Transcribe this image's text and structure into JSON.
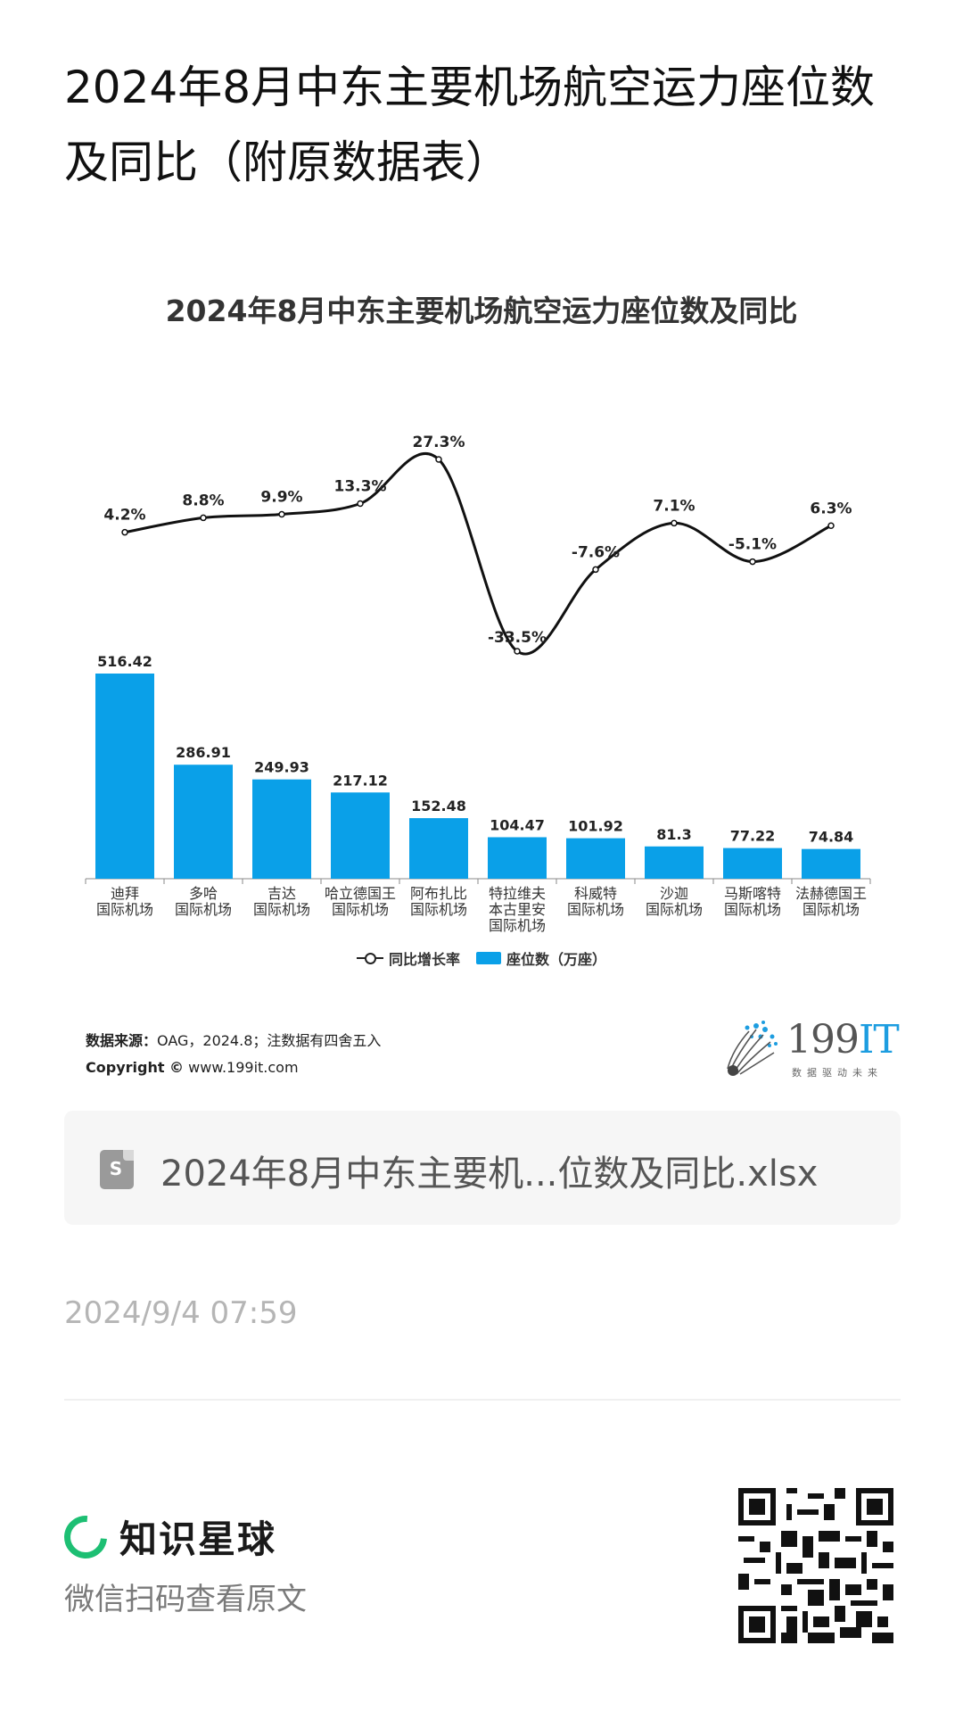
{
  "page": {
    "title": "2024年8月中东主要机场航空运力座位数及同比（附原数据表）"
  },
  "chart_data": {
    "type": "bar",
    "title": "2024年8月中东主要机场航空运力座位数及同比",
    "categories": [
      [
        "迪拜",
        "国际机场"
      ],
      [
        "多哈",
        "国际机场"
      ],
      [
        "吉达",
        "国际机场"
      ],
      [
        "哈立德国王",
        "国际机场"
      ],
      [
        "阿布扎比",
        "国际机场"
      ],
      [
        "特拉维夫",
        "本古里安",
        "国际机场"
      ],
      [
        "科威特",
        "国际机场"
      ],
      [
        "沙迦",
        "国际机场"
      ],
      [
        "马斯喀特",
        "国际机场"
      ],
      [
        "法赫德国王",
        "国际机场"
      ]
    ],
    "series": [
      {
        "name": "座位数（万座）",
        "type": "bar",
        "color": "#0aa0e8",
        "values": [
          516.42,
          286.91,
          249.93,
          217.12,
          152.48,
          104.47,
          101.92,
          81.3,
          77.22,
          74.84
        ],
        "labels": [
          "516.42",
          "286.91",
          "249.93",
          "217.12",
          "152.48",
          "104.47",
          "101.92",
          "81.3",
          "77.22",
          "74.84"
        ]
      },
      {
        "name": "同比增长率",
        "type": "line",
        "color": "#111111",
        "values": [
          4.2,
          8.8,
          9.9,
          13.3,
          27.3,
          -33.5,
          -7.6,
          7.1,
          -5.1,
          6.3
        ],
        "labels": [
          "4.2%",
          "8.8%",
          "9.9%",
          "13.3%",
          "27.3%",
          "-33.5%",
          "-7.6%",
          "7.1%",
          "-5.1%",
          "6.3%"
        ]
      }
    ],
    "legend": [
      "同比增长率",
      "座位数（万座）"
    ],
    "legend_position": "bottom",
    "grid": false
  },
  "source": {
    "label": "数据来源：",
    "text": "OAG，2024.8；注数据有四舍五入",
    "copyright_label": "Copyright ©",
    "copyright_url": "www.199it.com"
  },
  "brand_logo": {
    "text_main": "199",
    "text_accent": "IT",
    "tagline": "数据驱动未来"
  },
  "attachment": {
    "file_name": "2024年8月中东主要机...位数及同比.xlsx",
    "icon": "spreadsheet-file-icon"
  },
  "meta": {
    "timestamp": "2024/9/4 07:59"
  },
  "footer": {
    "app_name": "知识星球",
    "hint": "微信扫码查看原文",
    "qr_icon": "qr-code-icon"
  }
}
